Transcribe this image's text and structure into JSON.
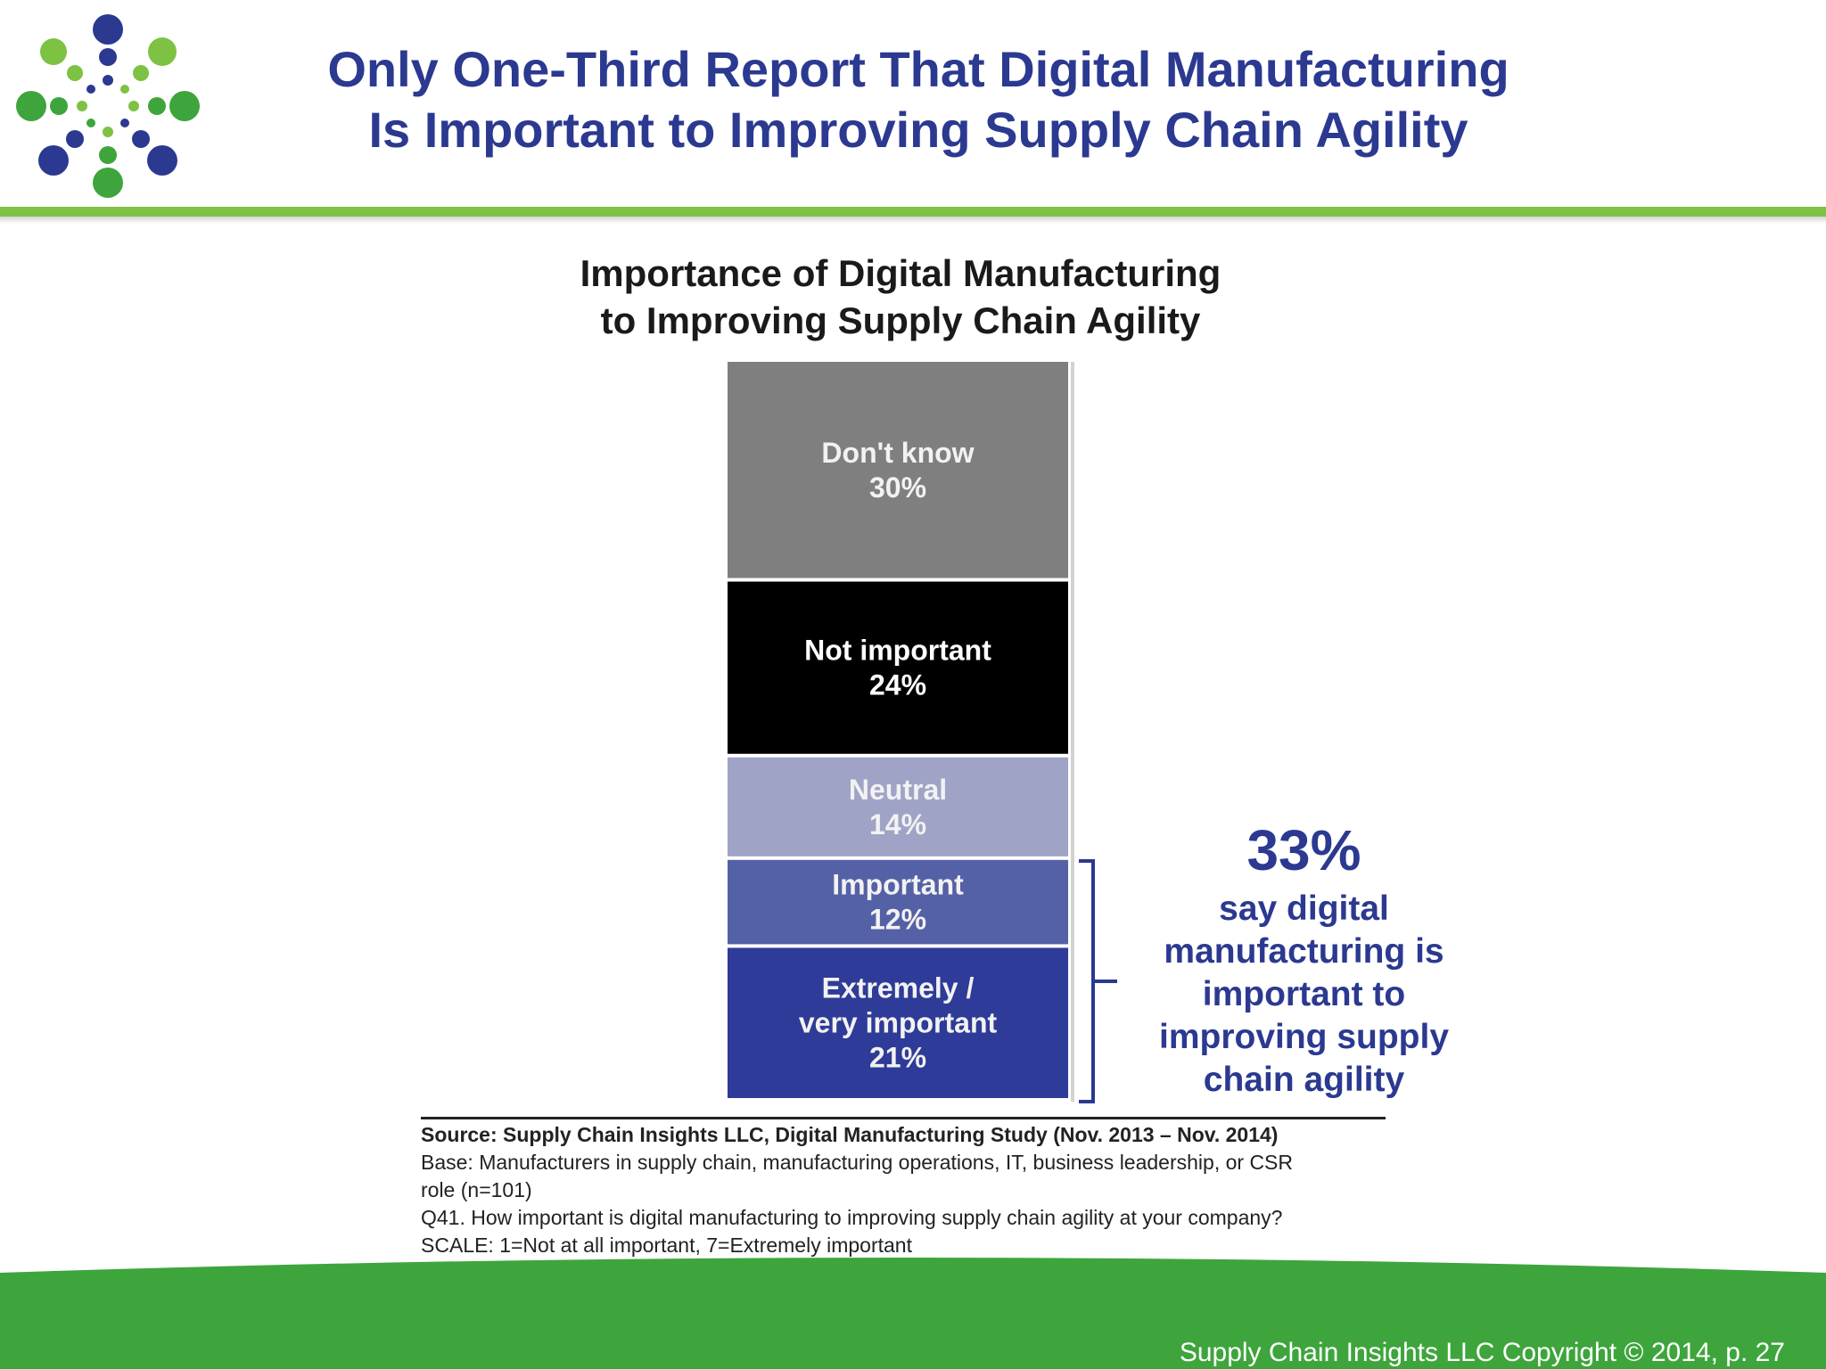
{
  "header": {
    "title_line_1": "Only One-Third Report That Digital Manufacturing",
    "title_line_2": "Is Important to Improving Supply Chain Agility"
  },
  "chart_data": {
    "type": "bar",
    "stacked": true,
    "title_line_1": "Importance of Digital Manufacturing",
    "title_line_2": "to Improving Supply Chain Agility",
    "categories": [
      "Importance of Digital Manufacturing to Improving Supply Chain Agility"
    ],
    "series": [
      {
        "name": "Don't know",
        "label_lines": [
          "Don't know"
        ],
        "value": 30,
        "value_label": "30%",
        "color": "#7f7f7f"
      },
      {
        "name": "Not important",
        "label_lines": [
          "Not important"
        ],
        "value": 24,
        "value_label": "24%",
        "color": "#000000"
      },
      {
        "name": "Neutral",
        "label_lines": [
          "Neutral"
        ],
        "value": 14,
        "value_label": "14%",
        "color": "#9fa3c6"
      },
      {
        "name": "Important",
        "label_lines": [
          "Important"
        ],
        "value": 12,
        "value_label": "12%",
        "color": "#5561a6"
      },
      {
        "name": "Extremely / very important",
        "label_lines": [
          "Extremely /",
          "very important"
        ],
        "value": 21,
        "value_label": "21%",
        "color": "#2e3b98"
      }
    ],
    "unit": "%",
    "ylim": [
      0,
      101
    ],
    "grid": false,
    "annotation": {
      "value": "33%",
      "text": "say digital manufacturing is important to improving supply chain agility",
      "applies_to": [
        "Important",
        "Extremely / very important"
      ]
    }
  },
  "source": {
    "line_1": "Source:  Supply Chain Insights LLC, Digital Manufacturing Study (Nov. 2013 – Nov. 2014)",
    "line_2": "Base: Manufacturers in supply chain, manufacturing operations, IT, business leadership, or CSR",
    "line_3": "role (n=101)",
    "line_4": "Q41. How important is digital manufacturing to improving supply chain agility at your company?",
    "line_5": "SCALE: 1=Not at all important, 7=Extremely important"
  },
  "footer": {
    "text": "Supply Chain Insights LLC Copyright © 2014, p. 27"
  },
  "colors": {
    "title_blue": "#2b3990",
    "accent_green": "#7dc242",
    "footer_green": "#3ea53c"
  }
}
